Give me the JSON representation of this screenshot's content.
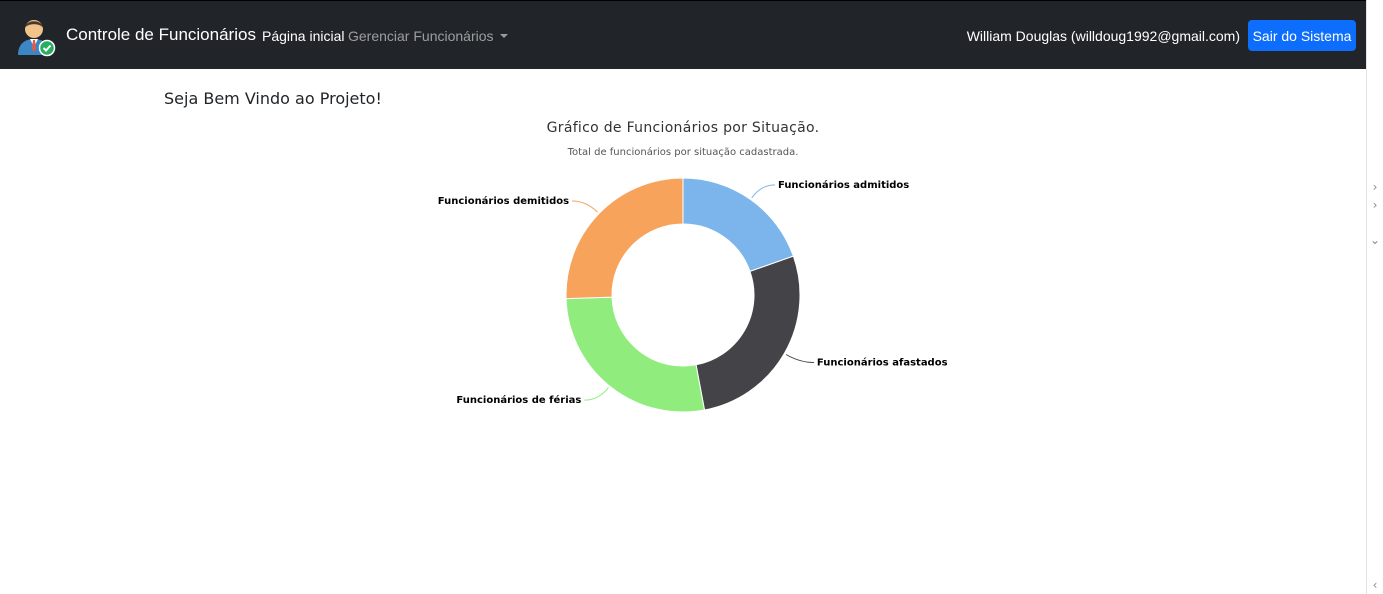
{
  "navbar": {
    "brand_title": "Controle de Funcionários",
    "home_label": "Página inicial",
    "manage_label": "Gerenciar Funcionários",
    "user_label": "William Douglas (willdoug1992@gmail.com)",
    "logout_label": "Sair do Sistema",
    "logo_icon": "employee-check-icon"
  },
  "main": {
    "welcome_text": "Seja Bem Vindo ao Projeto!"
  },
  "chart_data": {
    "type": "pie",
    "title": "Gráfico de Funcionários por Situação.",
    "subtitle": "Total de funcionários por situação cadastrada.",
    "donut": true,
    "categories": [
      "Funcionários admitidos",
      "Funcionários afastados",
      "Funcionários de férias",
      "Funcionários demitidos"
    ],
    "values": [
      1,
      1.4,
      1.4,
      1.3
    ],
    "colors": [
      "#7cb5ec",
      "#434348",
      "#90ed7d",
      "#f7a35c"
    ]
  },
  "colors": {
    "navbar_bg": "#212529",
    "primary_button": "#0d6efd"
  }
}
